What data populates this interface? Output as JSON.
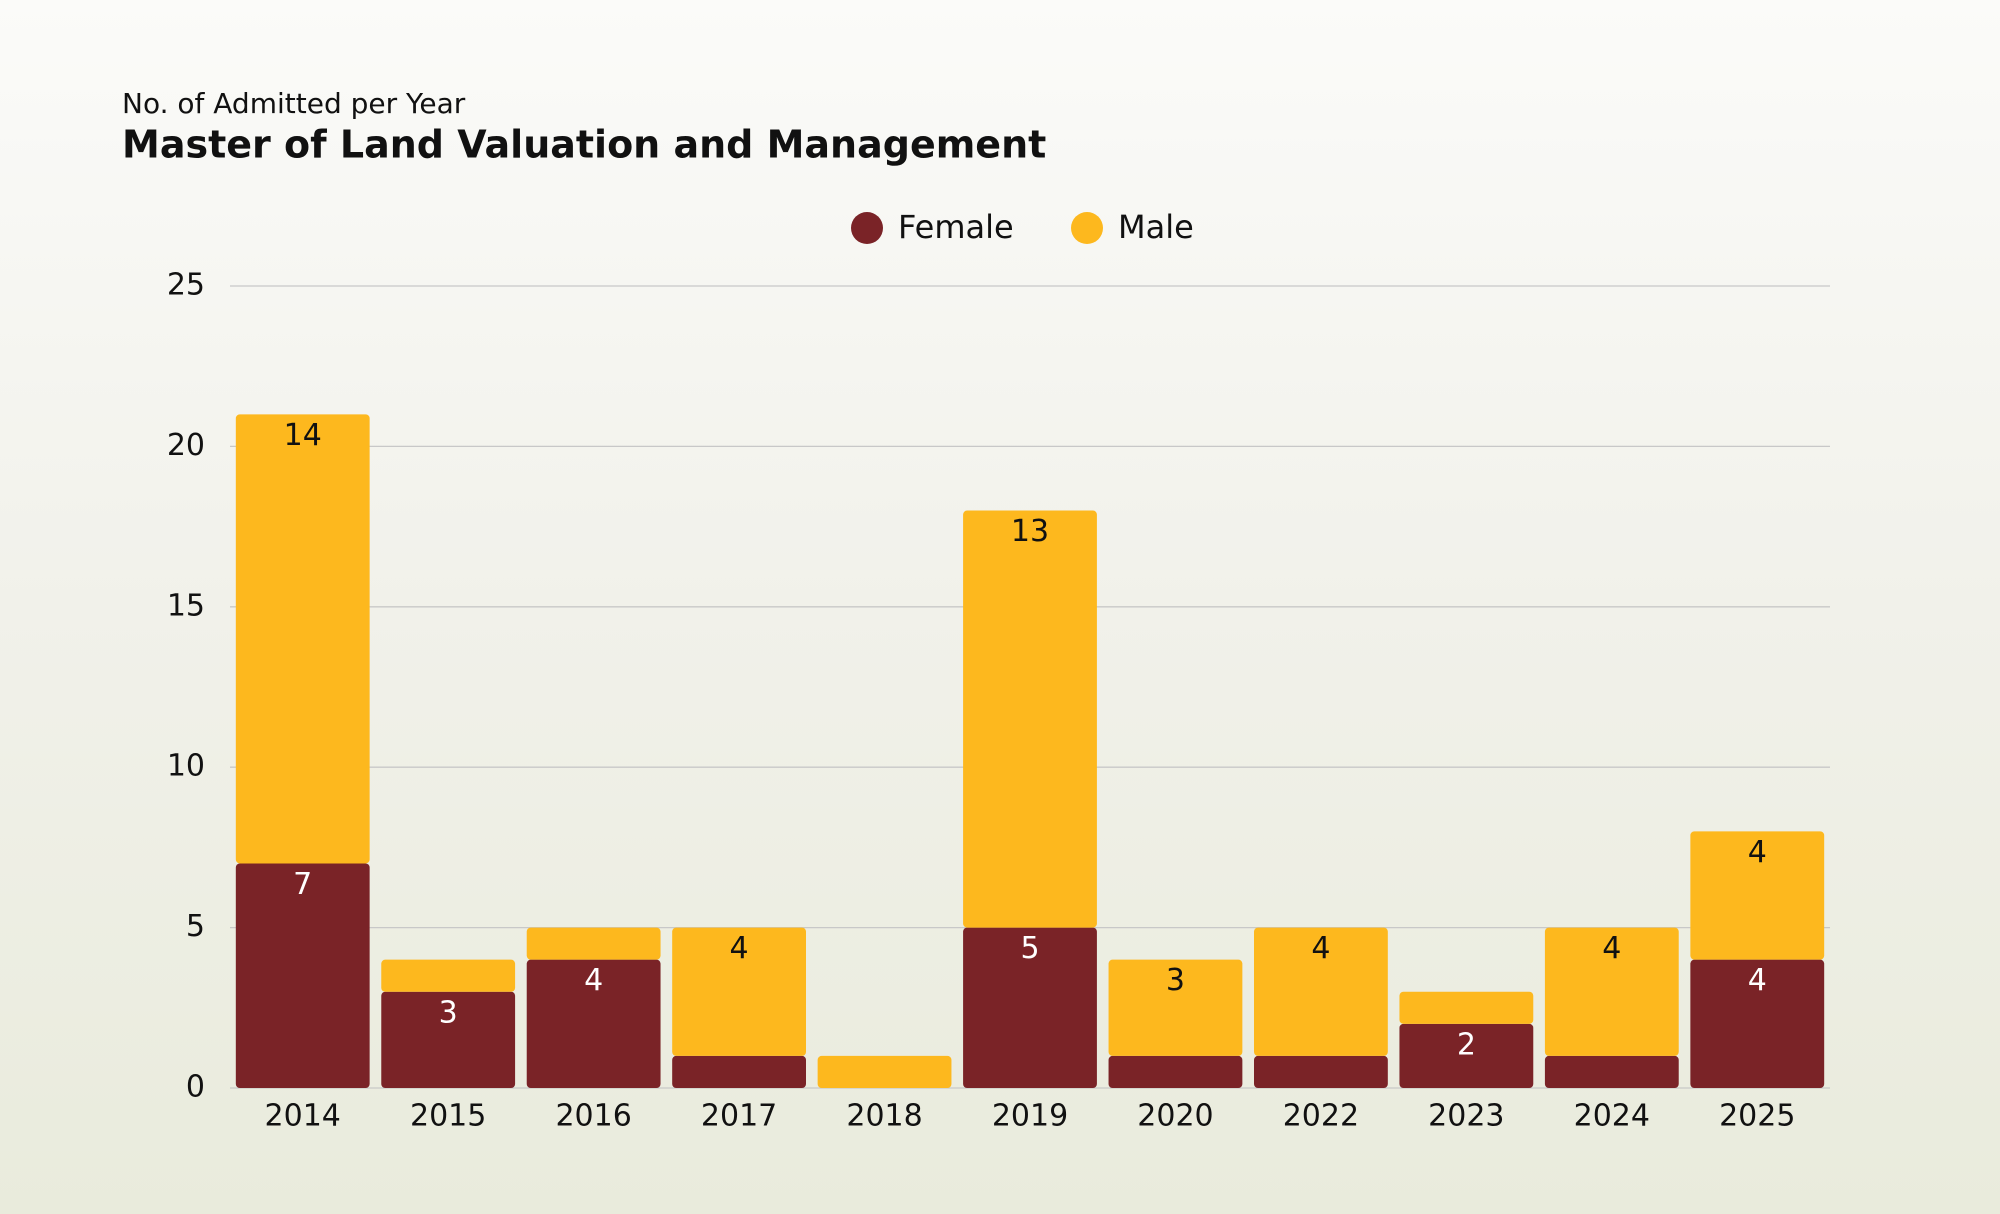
{
  "chart_data": {
    "type": "stacked-bar",
    "subtitle": "No. of Admitted per Year",
    "title": "Master of Land Valuation and Management",
    "categories": [
      "2014",
      "2015",
      "2016",
      "2017",
      "2018",
      "2019",
      "2020",
      "2022",
      "2023",
      "2024",
      "2025"
    ],
    "series": [
      {
        "name": "Female",
        "color": "#7a2327",
        "values": [
          7,
          3,
          4,
          1,
          0,
          5,
          1,
          1,
          2,
          1,
          4
        ]
      },
      {
        "name": "Male",
        "color": "#fdb81e",
        "values": [
          14,
          1,
          1,
          4,
          1,
          13,
          3,
          4,
          1,
          4,
          4
        ]
      }
    ],
    "ylim": [
      0,
      25
    ],
    "yticks": [
      0,
      5,
      10,
      15,
      20,
      25
    ],
    "grid": true,
    "legend": "top"
  }
}
